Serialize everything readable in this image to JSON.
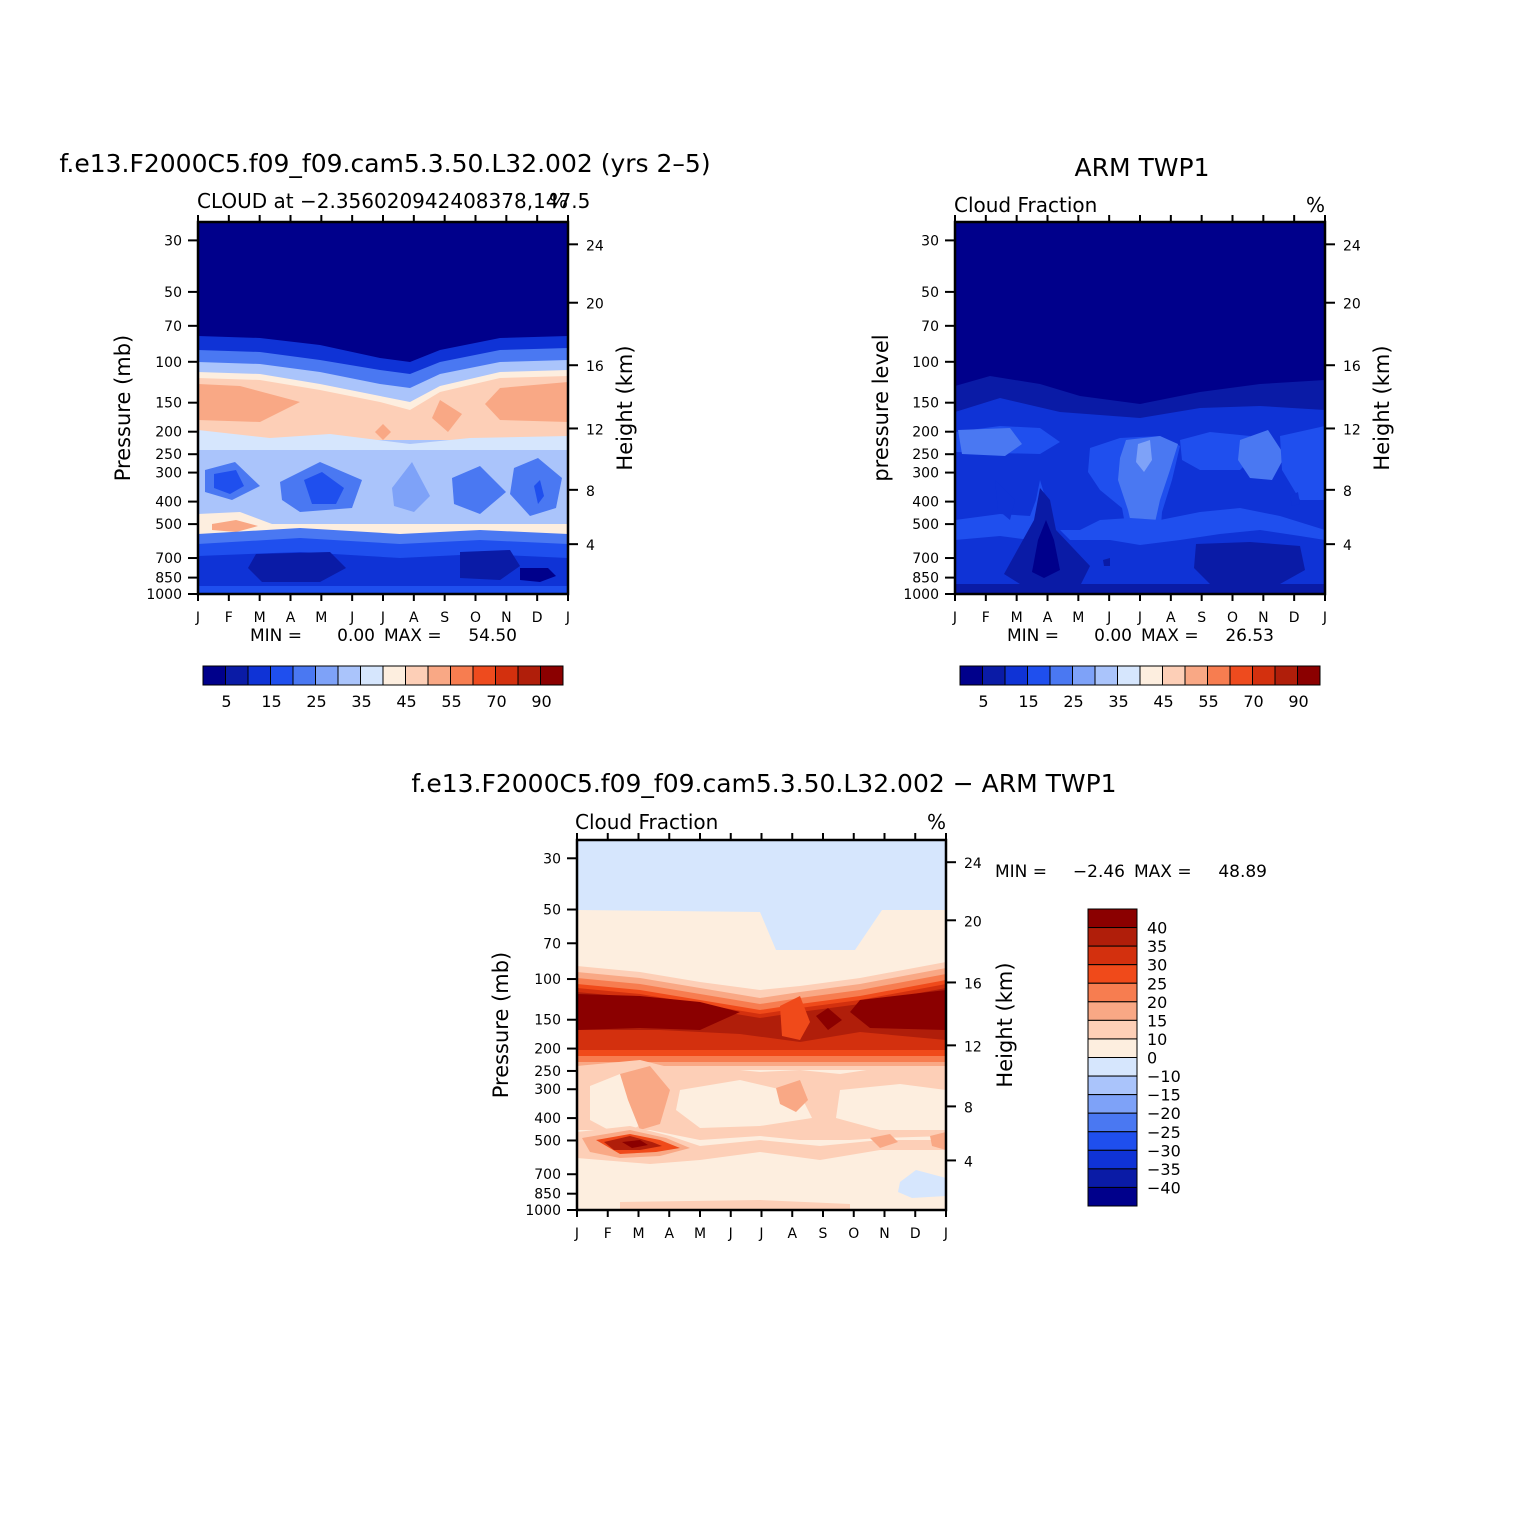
{
  "chart_data": [
    {
      "type": "heatmap",
      "title": "f.e13.F2000C5.f09_f09.cam5.3.50.L32.002 (yrs 2–5)",
      "subtitle": "CLOUD at −2.356020942408378,147.5",
      "units": "%",
      "ylabel": "Pressure (mb)",
      "y2label": "Height (km)",
      "x_ticks": [
        "J",
        "F",
        "M",
        "A",
        "M",
        "J",
        "J",
        "A",
        "S",
        "O",
        "N",
        "D",
        "J"
      ],
      "y_ticks": [
        "30",
        "50",
        "70",
        "100",
        "150",
        "200",
        "250",
        "300",
        "400",
        "500",
        "700",
        "850",
        "1000"
      ],
      "y2_ticks": [
        "24",
        "20",
        "16",
        "12",
        "8",
        "4"
      ],
      "min_label": "MIN =",
      "min": "0.00",
      "max_label": "MAX =",
      "max": "54.50",
      "colorbar_labels": [
        "5",
        "15",
        "25",
        "35",
        "45",
        "55",
        "70",
        "90"
      ],
      "colorbar_colors": [
        "#00008b",
        "#0a1ba6",
        "#0f33d6",
        "#1f4fee",
        "#4a78f2",
        "#7ea2f8",
        "#aac4fb",
        "#d6e6fd",
        "#fdeedf",
        "#fdcfb7",
        "#f9a885",
        "#f77d50",
        "#ee4b1e",
        "#d3300e",
        "#b01e0a",
        "#8b0000"
      ]
    },
    {
      "type": "heatmap",
      "title": "ARM TWP1",
      "subtitle": "Cloud Fraction",
      "units": "%",
      "ylabel": "pressure level",
      "y2label": "Height (km)",
      "x_ticks": [
        "J",
        "F",
        "M",
        "A",
        "M",
        "J",
        "J",
        "A",
        "S",
        "O",
        "N",
        "D",
        "J"
      ],
      "y_ticks": [
        "30",
        "50",
        "70",
        "100",
        "150",
        "200",
        "250",
        "300",
        "400",
        "500",
        "700",
        "850",
        "1000"
      ],
      "y2_ticks": [
        "24",
        "20",
        "16",
        "12",
        "8",
        "4"
      ],
      "min_label": "MIN =",
      "min": "0.00",
      "max_label": "MAX =",
      "max": "26.53",
      "colorbar_labels": [
        "5",
        "15",
        "25",
        "35",
        "45",
        "55",
        "70",
        "90"
      ]
    },
    {
      "type": "heatmap",
      "title": "f.e13.F2000C5.f09_f09.cam5.3.50.L32.002 − ARM TWP1",
      "subtitle": "Cloud Fraction",
      "units": "%",
      "ylabel": "Pressure (mb)",
      "y2label": "Height (km)",
      "x_ticks": [
        "J",
        "F",
        "M",
        "A",
        "M",
        "J",
        "J",
        "A",
        "S",
        "O",
        "N",
        "D",
        "J"
      ],
      "y_ticks": [
        "30",
        "50",
        "70",
        "100",
        "150",
        "200",
        "250",
        "300",
        "400",
        "500",
        "700",
        "850",
        "1000"
      ],
      "y2_ticks": [
        "24",
        "20",
        "16",
        "12",
        "8",
        "4"
      ],
      "min_label": "MIN =",
      "min": "−2.46",
      "max_label": "MAX =",
      "max": "48.89",
      "colorbar_labels": [
        "40",
        "35",
        "30",
        "25",
        "20",
        "15",
        "10",
        "0",
        "−10",
        "−15",
        "−20",
        "−25",
        "−30",
        "−35",
        "−40"
      ],
      "colorbar_colors": [
        "#8b0000",
        "#b01e0a",
        "#d3300e",
        "#f04a1a",
        "#f77d50",
        "#f9a885",
        "#fdcfb7",
        "#fdeedf",
        "#d6e6fd",
        "#aac4fb",
        "#7ea2f8",
        "#4a78f2",
        "#1f4fee",
        "#0f33d6",
        "#0a1ba6",
        "#00008b"
      ]
    }
  ]
}
